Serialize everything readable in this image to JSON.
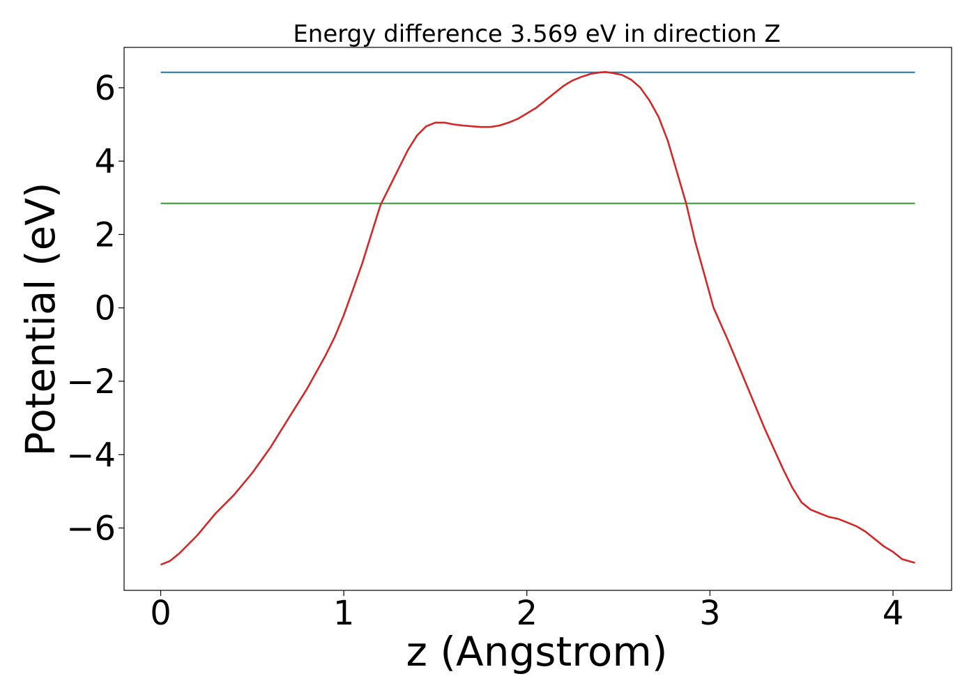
{
  "chart_data": {
    "type": "line",
    "title": "Energy difference 3.569 eV in direction Z",
    "xlabel": "z (Angstrom)",
    "ylabel": "Potential (eV)",
    "xlim": [
      -0.2,
      4.32
    ],
    "ylim": [
      -7.7,
      7.1
    ],
    "x_ticks": [
      0,
      1,
      2,
      3,
      4
    ],
    "x_tick_labels": [
      "0",
      "1",
      "2",
      "3",
      "4"
    ],
    "y_ticks": [
      -6,
      -4,
      -2,
      0,
      2,
      4,
      6
    ],
    "y_tick_labels": [
      "−6",
      "−4",
      "−2",
      "0",
      "2",
      "4",
      "6"
    ],
    "grid": false,
    "series": [
      {
        "color": "#1f77b4",
        "x": [
          0,
          4.12
        ],
        "y": [
          6.42,
          6.42
        ]
      },
      {
        "color": "#2ca02c",
        "x": [
          0,
          4.12
        ],
        "y": [
          2.85,
          2.85
        ]
      },
      {
        "color": "#d62728",
        "x": [
          0,
          0.05,
          0.1,
          0.2,
          0.3,
          0.4,
          0.5,
          0.6,
          0.7,
          0.8,
          0.9,
          0.95,
          1.0,
          1.05,
          1.1,
          1.15,
          1.2,
          1.25,
          1.3,
          1.35,
          1.4,
          1.45,
          1.5,
          1.55,
          1.6,
          1.65,
          1.7,
          1.75,
          1.8,
          1.85,
          1.9,
          1.95,
          2.0,
          2.05,
          2.1,
          2.15,
          2.2,
          2.25,
          2.3,
          2.35,
          2.4,
          2.43,
          2.47,
          2.52,
          2.57,
          2.62,
          2.67,
          2.72,
          2.77,
          2.82,
          2.87,
          2.92,
          2.97,
          3.02,
          3.1,
          3.2,
          3.3,
          3.4,
          3.45,
          3.5,
          3.55,
          3.6,
          3.65,
          3.7,
          3.75,
          3.8,
          3.85,
          3.9,
          3.95,
          4.0,
          4.05,
          4.12
        ],
        "y": [
          -7.0,
          -6.9,
          -6.7,
          -6.2,
          -5.6,
          -5.1,
          -4.5,
          -3.8,
          -3.0,
          -2.2,
          -1.3,
          -0.8,
          -0.2,
          0.5,
          1.2,
          2.0,
          2.8,
          3.3,
          3.8,
          4.3,
          4.7,
          4.95,
          5.05,
          5.05,
          5.0,
          4.97,
          4.95,
          4.93,
          4.93,
          4.97,
          5.05,
          5.15,
          5.3,
          5.45,
          5.65,
          5.85,
          6.05,
          6.2,
          6.3,
          6.38,
          6.42,
          6.43,
          6.4,
          6.35,
          6.22,
          6.0,
          5.65,
          5.2,
          4.55,
          3.7,
          2.85,
          1.8,
          0.9,
          0.0,
          -0.9,
          -2.1,
          -3.3,
          -4.4,
          -4.9,
          -5.3,
          -5.5,
          -5.6,
          -5.7,
          -5.75,
          -5.85,
          -5.95,
          -6.1,
          -6.3,
          -6.5,
          -6.65,
          -6.85,
          -6.95
        ]
      }
    ]
  }
}
